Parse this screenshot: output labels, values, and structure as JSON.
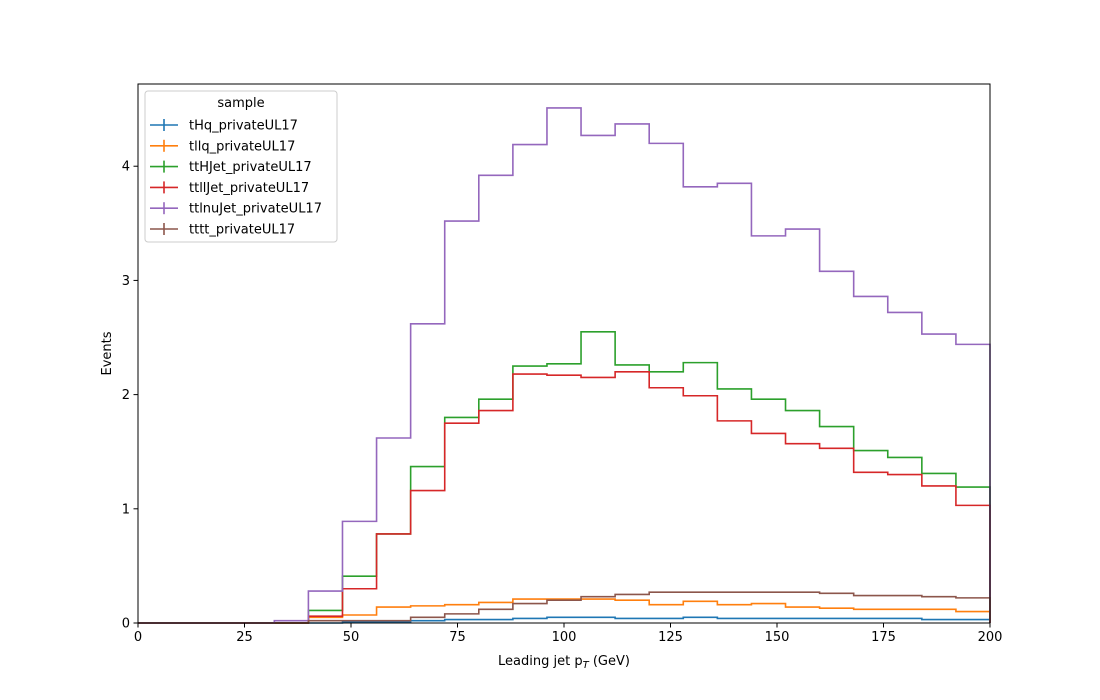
{
  "chart_data": {
    "type": "line",
    "style": "step-histogram",
    "xlabel": "Leading jet  p",
    "xlabel_sub": "T",
    "xlabel_unit": " (GeV)",
    "ylabel": "Events",
    "xlim": [
      0,
      200
    ],
    "ylim": [
      0,
      4.72
    ],
    "xticks": [
      0,
      25,
      50,
      75,
      100,
      125,
      150,
      175,
      200
    ],
    "yticks": [
      0,
      1,
      2,
      3,
      4
    ],
    "grid": false,
    "legend_title": "sample",
    "legend_position": "top-left",
    "bin_edges": [
      0,
      8,
      16,
      24,
      32,
      40,
      48,
      56,
      64,
      72,
      80,
      88,
      96,
      104,
      112,
      120,
      128,
      136,
      144,
      152,
      160,
      168,
      176,
      184,
      192,
      200
    ],
    "series": [
      {
        "name": "tHq_privateUL17",
        "color": "#1f77b4",
        "values": [
          0,
          0,
          0,
          0,
          0,
          0,
          0.01,
          0.01,
          0.02,
          0.03,
          0.03,
          0.04,
          0.05,
          0.05,
          0.04,
          0.04,
          0.05,
          0.04,
          0.04,
          0.04,
          0.04,
          0.04,
          0.04,
          0.03,
          0.03
        ]
      },
      {
        "name": "tllq_privateUL17",
        "color": "#ff7f0e",
        "values": [
          0,
          0,
          0,
          0,
          0,
          0.05,
          0.07,
          0.14,
          0.15,
          0.16,
          0.18,
          0.21,
          0.21,
          0.21,
          0.2,
          0.16,
          0.19,
          0.16,
          0.17,
          0.14,
          0.13,
          0.12,
          0.12,
          0.12,
          0.1
        ]
      },
      {
        "name": "ttHJet_privateUL17",
        "color": "#2ca02c",
        "values": [
          0,
          0,
          0,
          0,
          0,
          0.11,
          0.41,
          0.78,
          1.37,
          1.8,
          1.96,
          2.25,
          2.27,
          2.55,
          2.26,
          2.2,
          2.28,
          2.05,
          1.96,
          1.86,
          1.72,
          1.51,
          1.45,
          1.31,
          1.19
        ]
      },
      {
        "name": "ttllJet_privateUL17",
        "color": "#d62728",
        "values": [
          0,
          0,
          0,
          0,
          0,
          0.06,
          0.3,
          0.78,
          1.16,
          1.75,
          1.86,
          2.18,
          2.17,
          2.15,
          2.2,
          2.06,
          1.99,
          1.77,
          1.66,
          1.57,
          1.53,
          1.32,
          1.3,
          1.2,
          1.03
        ]
      },
      {
        "name": "ttlnuJet_privateUL17",
        "color": "#9467bd",
        "values": [
          0,
          0,
          0,
          0,
          0.02,
          0.28,
          0.89,
          1.62,
          2.62,
          3.52,
          3.92,
          4.19,
          4.51,
          4.27,
          4.37,
          4.2,
          3.82,
          3.85,
          3.39,
          3.45,
          3.08,
          2.86,
          2.72,
          2.53,
          2.44
        ]
      },
      {
        "name": "tttt_privateUL17",
        "color": "#8c564b",
        "values": [
          0,
          0,
          0,
          0,
          0,
          0.02,
          0.02,
          0.02,
          0.05,
          0.08,
          0.12,
          0.17,
          0.2,
          0.23,
          0.25,
          0.27,
          0.27,
          0.27,
          0.27,
          0.27,
          0.26,
          0.24,
          0.24,
          0.23,
          0.22
        ]
      }
    ]
  }
}
